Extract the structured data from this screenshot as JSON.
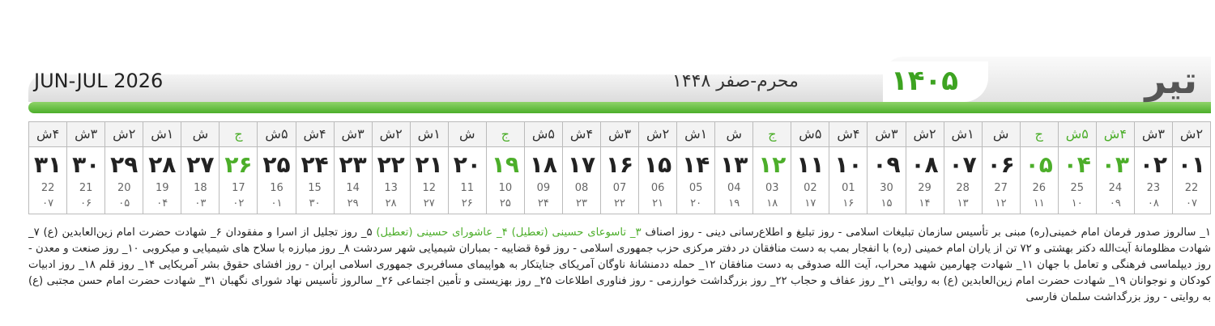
{
  "header": {
    "title": "تیر",
    "year": "۱۴۰۵",
    "hijri_months": "محرم-صفر ۱۴۴۸",
    "gregorian_months": "JUN-JUL 2026"
  },
  "days": [
    {
      "weekday": "۲ش",
      "day": "۰۱",
      "gregorian": "22",
      "hijri": "۰۷",
      "holiday": false
    },
    {
      "weekday": "۳ش",
      "day": "۰۲",
      "gregorian": "23",
      "hijri": "۰۸",
      "holiday": false
    },
    {
      "weekday": "۴ش",
      "day": "۰۳",
      "gregorian": "24",
      "hijri": "۰۹",
      "holiday": true
    },
    {
      "weekday": "۵ش",
      "day": "۰۴",
      "gregorian": "25",
      "hijri": "۱۰",
      "holiday": true
    },
    {
      "weekday": "ج",
      "day": "۰۵",
      "gregorian": "26",
      "hijri": "۱۱",
      "holiday": true
    },
    {
      "weekday": "ش",
      "day": "۰۶",
      "gregorian": "27",
      "hijri": "۱۲",
      "holiday": false
    },
    {
      "weekday": "۱ش",
      "day": "۰۷",
      "gregorian": "28",
      "hijri": "۱۳",
      "holiday": false
    },
    {
      "weekday": "۲ش",
      "day": "۰۸",
      "gregorian": "29",
      "hijri": "۱۴",
      "holiday": false
    },
    {
      "weekday": "۳ش",
      "day": "۰۹",
      "gregorian": "30",
      "hijri": "۱۵",
      "holiday": false
    },
    {
      "weekday": "۴ش",
      "day": "۱۰",
      "gregorian": "01",
      "hijri": "۱۶",
      "holiday": false
    },
    {
      "weekday": "۵ش",
      "day": "۱۱",
      "gregorian": "02",
      "hijri": "۱۷",
      "holiday": false
    },
    {
      "weekday": "ج",
      "day": "۱۲",
      "gregorian": "03",
      "hijri": "۱۸",
      "holiday": true
    },
    {
      "weekday": "ش",
      "day": "۱۳",
      "gregorian": "04",
      "hijri": "۱۹",
      "holiday": false
    },
    {
      "weekday": "۱ش",
      "day": "۱۴",
      "gregorian": "05",
      "hijri": "۲۰",
      "holiday": false
    },
    {
      "weekday": "۲ش",
      "day": "۱۵",
      "gregorian": "06",
      "hijri": "۲۱",
      "holiday": false
    },
    {
      "weekday": "۳ش",
      "day": "۱۶",
      "gregorian": "07",
      "hijri": "۲۲",
      "holiday": false
    },
    {
      "weekday": "۴ش",
      "day": "۱۷",
      "gregorian": "08",
      "hijri": "۲۳",
      "holiday": false
    },
    {
      "weekday": "۵ش",
      "day": "۱۸",
      "gregorian": "09",
      "hijri": "۲۴",
      "holiday": false
    },
    {
      "weekday": "ج",
      "day": "۱۹",
      "gregorian": "10",
      "hijri": "۲۵",
      "holiday": true
    },
    {
      "weekday": "ش",
      "day": "۲۰",
      "gregorian": "11",
      "hijri": "۲۶",
      "holiday": false
    },
    {
      "weekday": "۱ش",
      "day": "۲۱",
      "gregorian": "12",
      "hijri": "۲۷",
      "holiday": false
    },
    {
      "weekday": "۲ش",
      "day": "۲۲",
      "gregorian": "13",
      "hijri": "۲۸",
      "holiday": false
    },
    {
      "weekday": "۳ش",
      "day": "۲۳",
      "gregorian": "14",
      "hijri": "۲۹",
      "holiday": false
    },
    {
      "weekday": "۴ش",
      "day": "۲۴",
      "gregorian": "15",
      "hijri": "۳۰",
      "holiday": false
    },
    {
      "weekday": "۵ش",
      "day": "۲۵",
      "gregorian": "16",
      "hijri": "۰۱",
      "holiday": false
    },
    {
      "weekday": "ج",
      "day": "۲۶",
      "gregorian": "17",
      "hijri": "۰۲",
      "holiday": true
    },
    {
      "weekday": "ش",
      "day": "۲۷",
      "gregorian": "18",
      "hijri": "۰۳",
      "holiday": false
    },
    {
      "weekday": "۱ش",
      "day": "۲۸",
      "gregorian": "19",
      "hijri": "۰۴",
      "holiday": false
    },
    {
      "weekday": "۲ش",
      "day": "۲۹",
      "gregorian": "20",
      "hijri": "۰۵",
      "holiday": false
    },
    {
      "weekday": "۳ش",
      "day": "۳۰",
      "gregorian": "21",
      "hijri": "۰۶",
      "holiday": false
    },
    {
      "weekday": "۴ش",
      "day": "۳۱",
      "gregorian": "22",
      "hijri": "۰۷",
      "holiday": false
    }
  ],
  "notes": [
    {
      "text": "۱_ سالروز صدور فرمان امام خمینی(ره) مبنی بر تأسیس سازمان تبلیغات اسلامی - روز تبلیغ و اطلاع‌رسانی دینی - روز اصناف",
      "highlight": false
    },
    {
      "text": "۳_ تاسوعای حسینی (تعطیل) ۴_ عاشورای حسینی (تعطیل)",
      "highlight": true
    },
    {
      "text": "۵_ روز تجلیل از اسرا و مفقودان ۶_ شهادت حضرت امام زین‌العابدین (ع) ۷_ شهادت مظلومانهٔ آیت‌الله دکتر بهشتی و ۷۲ تن از یاران امام خمینی (ره) با انفجار بمب به دست منافقان در دفتر مرکزی حزب جمهوری اسلامی - روز قوهٔ قضاییه - بمباران شیمیایی شهر سردشت ۸_ روز مبارزه با سلاح های شیمیایی و میکروبی ۱۰_ روز صنعت و معدن - روز دیپلماسی فرهنگی و تعامل با جهان ۱۱_ شهادت چهارمین شهید محراب، آیت الله صدوقی به دست منافقان ۱۲_ حمله ددمنشانهٔ ناوگان آمریکای جنایتکار به هواپیمای مسافربری جمهوری اسلامی ایران - روز افشای حقوق بشر آمریکایی ۱۴_ روز قلم ۱۸_ روز ادبیات کودکان و نوجوانان ۱۹_ شهادت حضرت امام زین‌العابدین (ع) به روایتی ۲۱_ روز عفاف و حجاب ۲۲_ روز بزرگداشت خوارزمی - روز فناوری اطلاعات ۲۵_ روز بهزیستی و تأمین اجتماعی ۲۶_ سالروز تأسیس نهاد شورای نگهبان ۳۱_ شهادت حضرت امام حسن مجتبی (ع) به روایتی - روز بزرگداشت سلمان فارسی",
      "highlight": false
    }
  ]
}
